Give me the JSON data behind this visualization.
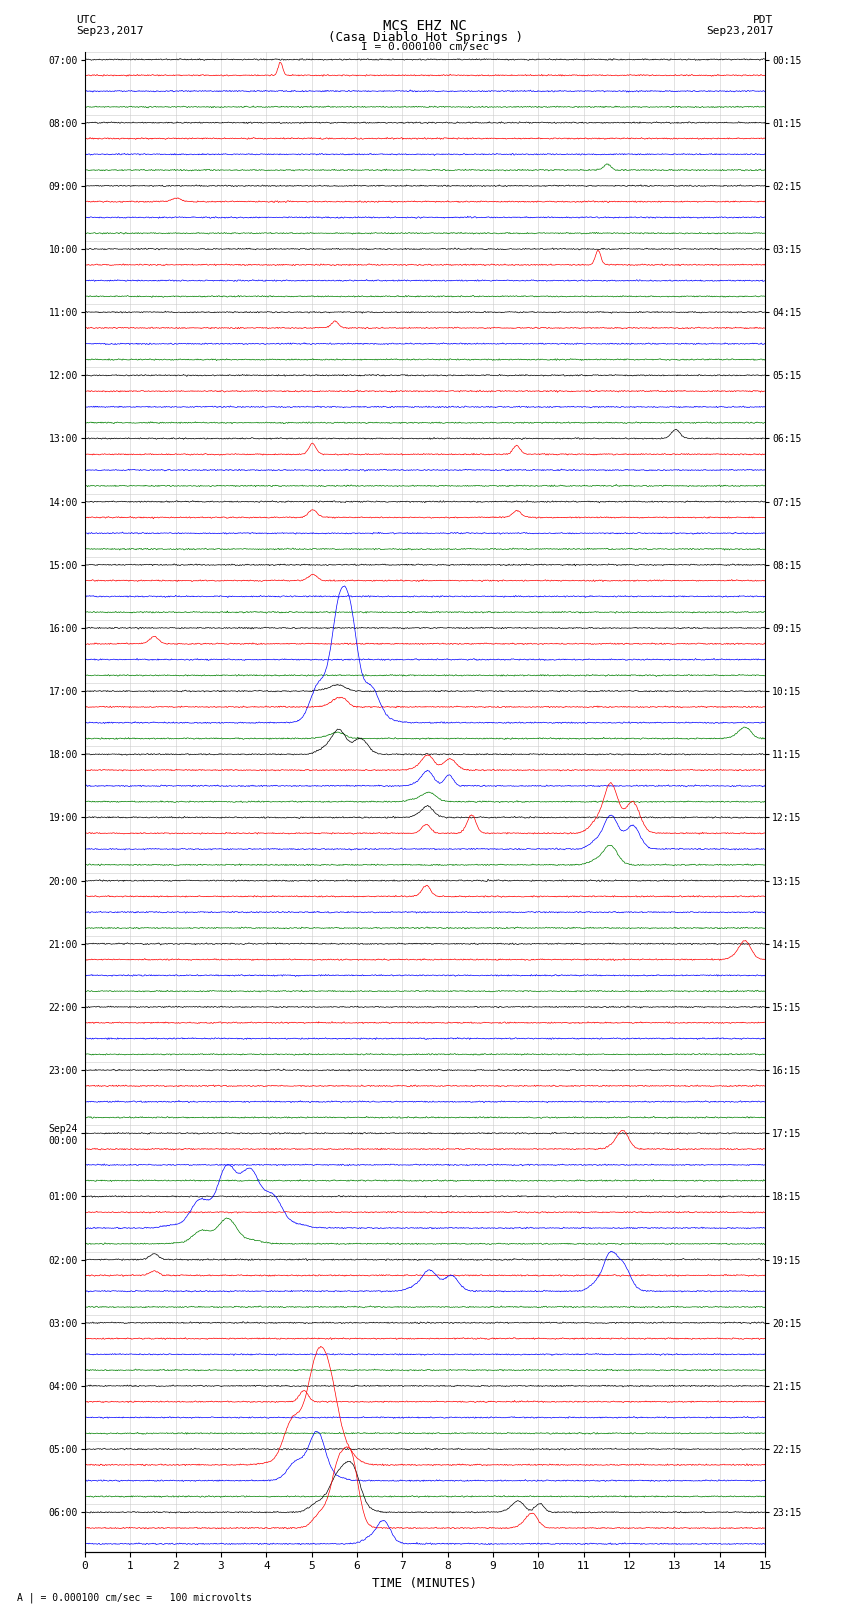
{
  "title_line1": "MCS EHZ NC",
  "title_line2": "(Casa Diablo Hot Springs )",
  "scale_label": "I = 0.000100 cm/sec",
  "left_label_top": "UTC",
  "left_label_date": "Sep23,2017",
  "right_label_top": "PDT",
  "right_label_date": "Sep23,2017",
  "footer_label": "A | = 0.000100 cm/sec =   100 microvolts",
  "xlabel": "TIME (MINUTES)",
  "xlim": [
    0,
    15
  ],
  "xticks": [
    0,
    1,
    2,
    3,
    4,
    5,
    6,
    7,
    8,
    9,
    10,
    11,
    12,
    13,
    14,
    15
  ],
  "utc_times": [
    "07:00",
    "08:00",
    "09:00",
    "10:00",
    "11:00",
    "12:00",
    "13:00",
    "14:00",
    "15:00",
    "16:00",
    "17:00",
    "18:00",
    "19:00",
    "20:00",
    "21:00",
    "22:00",
    "23:00",
    "Sep24\n00:00",
    "01:00",
    "02:00",
    "03:00",
    "04:00",
    "05:00",
    "06:00"
  ],
  "pdt_times": [
    "00:15",
    "01:15",
    "02:15",
    "03:15",
    "04:15",
    "05:15",
    "06:15",
    "07:15",
    "08:15",
    "09:15",
    "10:15",
    "11:15",
    "12:15",
    "13:15",
    "14:15",
    "15:15",
    "16:15",
    "17:15",
    "18:15",
    "19:15",
    "20:15",
    "21:15",
    "22:15",
    "23:15"
  ],
  "colors": [
    "black",
    "red",
    "blue",
    "green"
  ],
  "bg_color": "#ffffff",
  "grid_color": "#aaaaaa",
  "n_rows": 95,
  "n_channels": 4,
  "noise_scale": 0.06,
  "seed": 42
}
